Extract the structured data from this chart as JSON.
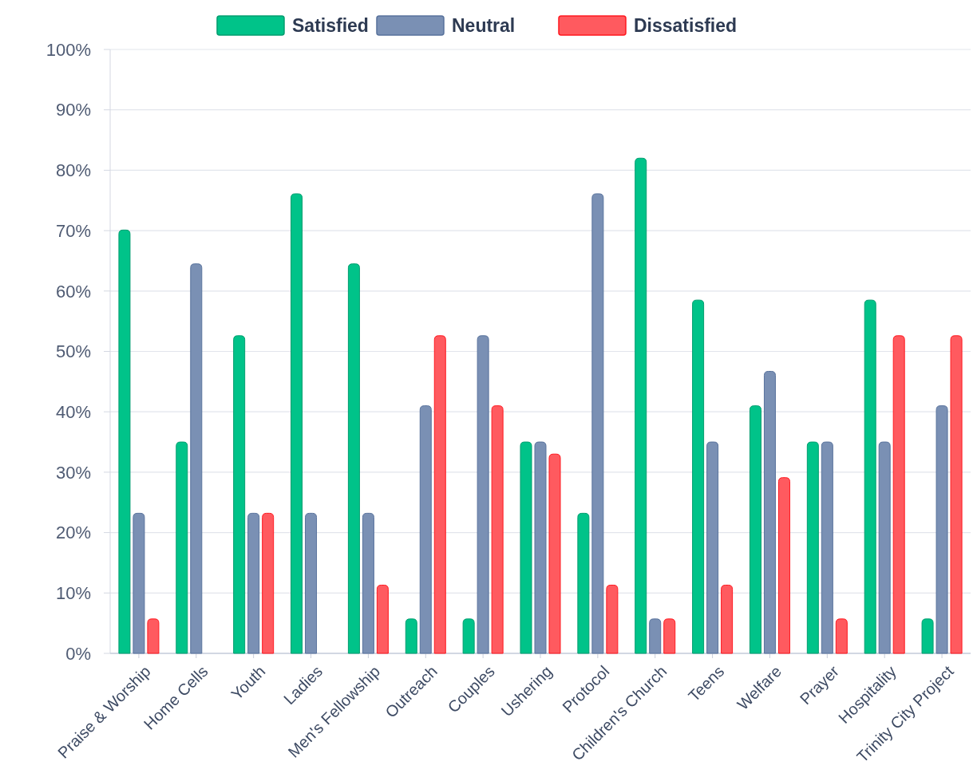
{
  "chart_data": {
    "type": "bar",
    "categories": [
      "Praise & Worship",
      "Home Cells",
      "Youth",
      "Ladies",
      "Men's Fellowship",
      "Outreach",
      "Couples",
      "Ushering",
      "Protocol",
      "Children's Church",
      "Teens",
      "Welfare",
      "Prayer",
      "Hospitality",
      "Trinity City Project"
    ],
    "series": [
      {
        "name": "Satisfied",
        "color": "#00c389",
        "values": [
          70.1,
          35,
          52.6,
          76.1,
          64.5,
          5.7,
          5.7,
          35,
          23.2,
          82,
          58.5,
          41,
          35,
          58.5,
          5.7
        ]
      },
      {
        "name": "Neutral",
        "color": "#7a90b4",
        "values": [
          23.2,
          64.5,
          23.2,
          23.2,
          23.2,
          41,
          52.6,
          35,
          76.1,
          5.7,
          35,
          46.7,
          35,
          35,
          41
        ]
      },
      {
        "name": "Dissatisfied",
        "color": "#ff5a5f",
        "values": [
          5.7,
          null,
          23.2,
          null,
          11.3,
          52.6,
          41,
          33,
          11.3,
          5.7,
          11.3,
          29.1,
          5.7,
          52.6,
          52.6
        ]
      }
    ],
    "ylim": [
      0,
      100
    ],
    "yticks": [
      {
        "value": 0,
        "label": "0%"
      },
      {
        "value": 10,
        "label": "10%"
      },
      {
        "value": 20,
        "label": "20%"
      },
      {
        "value": 30,
        "label": "30%"
      },
      {
        "value": 40,
        "label": "40%"
      },
      {
        "value": 50,
        "label": "50%"
      },
      {
        "value": 60,
        "label": "60%"
      },
      {
        "value": 70,
        "label": "70%"
      },
      {
        "value": 80,
        "label": "80%"
      },
      {
        "value": 90,
        "label": "90%"
      },
      {
        "value": 100,
        "label": "100%"
      }
    ],
    "grid": "y",
    "legend": "top"
  }
}
